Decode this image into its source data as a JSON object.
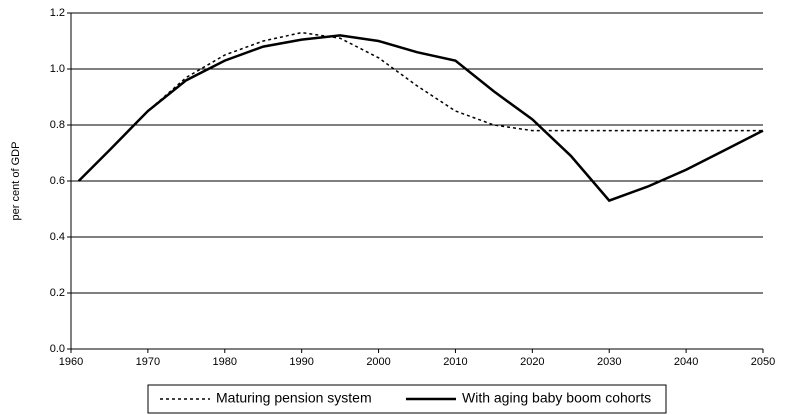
{
  "chart_data": {
    "type": "line",
    "ylabel": "per cent of GDP",
    "x": [
      1961,
      1965,
      1970,
      1975,
      1980,
      1985,
      1990,
      1995,
      2000,
      2005,
      2010,
      2015,
      2020,
      2025,
      2030,
      2035,
      2040,
      2045,
      2050
    ],
    "series": [
      {
        "name": "Maturing pension system",
        "color": "#000000",
        "dash": true,
        "values": [
          0.6,
          0.71,
          0.85,
          0.97,
          1.05,
          1.1,
          1.13,
          1.11,
          1.04,
          0.94,
          0.85,
          0.8,
          0.78,
          0.78,
          0.78,
          0.78,
          0.78,
          0.78,
          0.78
        ]
      },
      {
        "name": "With aging baby boom cohorts",
        "color": "#000000",
        "dash": false,
        "values": [
          0.6,
          0.71,
          0.85,
          0.96,
          1.03,
          1.08,
          1.105,
          1.12,
          1.1,
          1.06,
          1.03,
          0.92,
          0.82,
          0.69,
          0.53,
          0.58,
          0.64,
          0.71,
          0.78
        ]
      }
    ],
    "xlim": [
      1960,
      2050
    ],
    "xticks": [
      1960,
      1970,
      1980,
      1990,
      2000,
      2010,
      2020,
      2030,
      2040,
      2050
    ],
    "ylim": [
      0,
      1.2
    ],
    "yticks": [
      {
        "value": 0,
        "label": "0.0"
      },
      {
        "value": 0.2,
        "label": "0.2"
      },
      {
        "value": 0.4,
        "label": "0.4"
      },
      {
        "value": 0.6,
        "label": "0.6"
      },
      {
        "value": 0.8,
        "label": "0.8"
      },
      {
        "value": 1.0,
        "label": "1.0"
      },
      {
        "value": 1.2,
        "label": "1.2"
      }
    ],
    "grid": true,
    "legend": "bottom"
  }
}
